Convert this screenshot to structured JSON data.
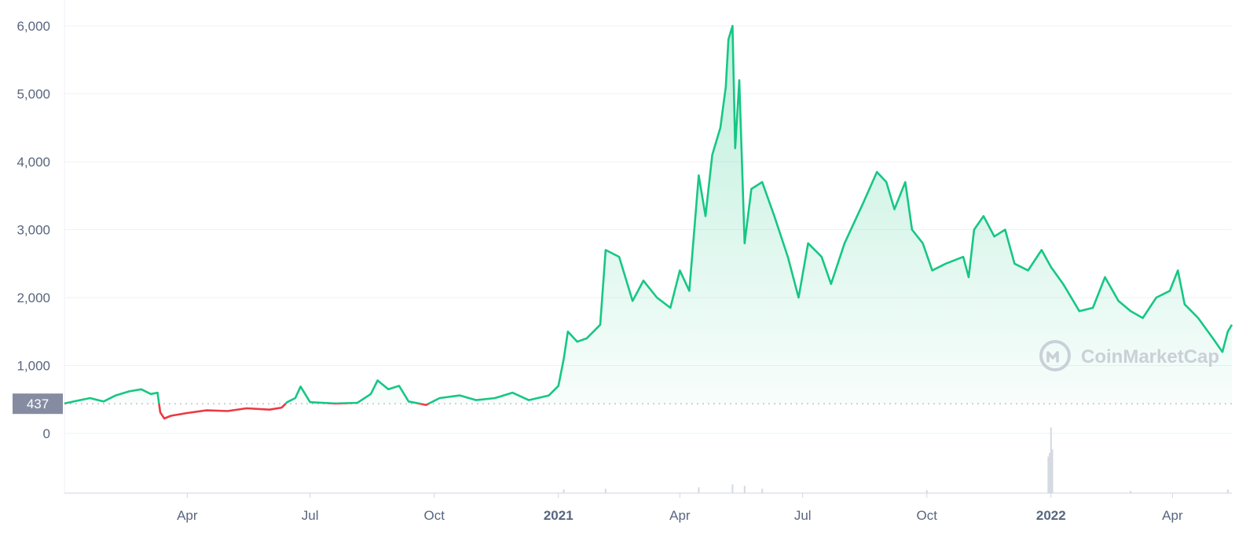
{
  "chart_data": {
    "type": "area",
    "y_ticks": [
      "0",
      "1,000",
      "2,000",
      "3,000",
      "4,000",
      "5,000",
      "6,000"
    ],
    "y_tick_values": [
      0,
      1000,
      2000,
      3000,
      4000,
      5000,
      6000
    ],
    "ylim": [
      0,
      6000
    ],
    "x_ticks": [
      {
        "label": "Apr",
        "date": "2020-04-01",
        "major": false
      },
      {
        "label": "Jul",
        "date": "2020-07-01",
        "major": false
      },
      {
        "label": "Oct",
        "date": "2020-10-01",
        "major": false
      },
      {
        "label": "2021",
        "date": "2021-01-01",
        "major": true
      },
      {
        "label": "Apr",
        "date": "2021-04-01",
        "major": false
      },
      {
        "label": "Jul",
        "date": "2021-07-01",
        "major": false
      },
      {
        "label": "Oct",
        "date": "2021-10-01",
        "major": false
      },
      {
        "label": "2022",
        "date": "2022-01-01",
        "major": true
      },
      {
        "label": "Apr",
        "date": "2022-04-01",
        "major": false
      }
    ],
    "xlim": [
      "2020-01-01",
      "2022-05-15"
    ],
    "reference_line": {
      "value": 437,
      "label": "437"
    },
    "colors": {
      "above": "#16c784",
      "below": "#ea3943",
      "grid": "#eff2f5",
      "axis_text": "#58667e",
      "ref_bg": "#858ca2"
    },
    "series": [
      {
        "points": [
          [
            "2020-01-01",
            440
          ],
          [
            "2020-01-10",
            480
          ],
          [
            "2020-01-20",
            520
          ],
          [
            "2020-01-30",
            470
          ],
          [
            "2020-02-08",
            560
          ],
          [
            "2020-02-18",
            620
          ],
          [
            "2020-02-27",
            650
          ],
          [
            "2020-03-05",
            580
          ],
          [
            "2020-03-10",
            600
          ],
          [
            "2020-03-12",
            310
          ],
          [
            "2020-03-15",
            220
          ],
          [
            "2020-03-20",
            260
          ],
          [
            "2020-04-01",
            300
          ],
          [
            "2020-04-15",
            340
          ],
          [
            "2020-05-01",
            330
          ],
          [
            "2020-05-15",
            370
          ],
          [
            "2020-06-01",
            350
          ],
          [
            "2020-06-10",
            380
          ],
          [
            "2020-06-14",
            460
          ],
          [
            "2020-06-20",
            520
          ],
          [
            "2020-06-24",
            690
          ],
          [
            "2020-07-01",
            460
          ],
          [
            "2020-07-20",
            440
          ],
          [
            "2020-08-05",
            450
          ],
          [
            "2020-08-15",
            580
          ],
          [
            "2020-08-20",
            780
          ],
          [
            "2020-08-28",
            650
          ],
          [
            "2020-09-05",
            700
          ],
          [
            "2020-09-12",
            470
          ],
          [
            "2020-09-25",
            420
          ],
          [
            "2020-10-05",
            520
          ],
          [
            "2020-10-20",
            560
          ],
          [
            "2020-11-01",
            490
          ],
          [
            "2020-11-15",
            520
          ],
          [
            "2020-11-28",
            600
          ],
          [
            "2020-12-10",
            490
          ],
          [
            "2020-12-25",
            560
          ],
          [
            "2021-01-01",
            700
          ],
          [
            "2021-01-05",
            1100
          ],
          [
            "2021-01-08",
            1500
          ],
          [
            "2021-01-15",
            1350
          ],
          [
            "2021-01-22",
            1400
          ],
          [
            "2021-02-01",
            1600
          ],
          [
            "2021-02-05",
            2700
          ],
          [
            "2021-02-15",
            2600
          ],
          [
            "2021-02-25",
            1950
          ],
          [
            "2021-03-05",
            2250
          ],
          [
            "2021-03-15",
            2000
          ],
          [
            "2021-03-25",
            1850
          ],
          [
            "2021-04-01",
            2400
          ],
          [
            "2021-04-08",
            2100
          ],
          [
            "2021-04-15",
            3800
          ],
          [
            "2021-04-20",
            3200
          ],
          [
            "2021-04-25",
            4100
          ],
          [
            "2021-05-01",
            4500
          ],
          [
            "2021-05-05",
            5100
          ],
          [
            "2021-05-07",
            5800
          ],
          [
            "2021-05-10",
            6000
          ],
          [
            "2021-05-12",
            4200
          ],
          [
            "2021-05-15",
            5200
          ],
          [
            "2021-05-19",
            2800
          ],
          [
            "2021-05-24",
            3600
          ],
          [
            "2021-06-01",
            3700
          ],
          [
            "2021-06-10",
            3200
          ],
          [
            "2021-06-20",
            2600
          ],
          [
            "2021-06-28",
            2000
          ],
          [
            "2021-07-05",
            2800
          ],
          [
            "2021-07-15",
            2600
          ],
          [
            "2021-07-22",
            2200
          ],
          [
            "2021-08-01",
            2800
          ],
          [
            "2021-08-15",
            3400
          ],
          [
            "2021-08-25",
            3850
          ],
          [
            "2021-09-01",
            3700
          ],
          [
            "2021-09-07",
            3300
          ],
          [
            "2021-09-15",
            3700
          ],
          [
            "2021-09-20",
            3000
          ],
          [
            "2021-09-28",
            2800
          ],
          [
            "2021-10-05",
            2400
          ],
          [
            "2021-10-15",
            2500
          ],
          [
            "2021-10-28",
            2600
          ],
          [
            "2021-11-01",
            2300
          ],
          [
            "2021-11-05",
            3000
          ],
          [
            "2021-11-12",
            3200
          ],
          [
            "2021-11-20",
            2900
          ],
          [
            "2021-11-28",
            3000
          ],
          [
            "2021-12-05",
            2500
          ],
          [
            "2021-12-15",
            2400
          ],
          [
            "2021-12-25",
            2700
          ],
          [
            "2022-01-01",
            2450
          ],
          [
            "2022-01-10",
            2200
          ],
          [
            "2022-01-22",
            1800
          ],
          [
            "2022-02-01",
            1850
          ],
          [
            "2022-02-10",
            2300
          ],
          [
            "2022-02-20",
            1950
          ],
          [
            "2022-03-01",
            1800
          ],
          [
            "2022-03-10",
            1700
          ],
          [
            "2022-03-20",
            2000
          ],
          [
            "2022-03-30",
            2100
          ],
          [
            "2022-04-05",
            2400
          ],
          [
            "2022-04-10",
            1900
          ],
          [
            "2022-04-20",
            1700
          ],
          [
            "2022-05-01",
            1400
          ],
          [
            "2022-05-08",
            1200
          ],
          [
            "2022-05-12",
            1500
          ],
          [
            "2022-05-15",
            1600
          ]
        ]
      }
    ],
    "volume": [
      [
        "2021-01-05",
        0.05
      ],
      [
        "2021-02-05",
        0.06
      ],
      [
        "2021-04-15",
        0.08
      ],
      [
        "2021-05-10",
        0.12
      ],
      [
        "2021-05-19",
        0.1
      ],
      [
        "2021-06-01",
        0.06
      ],
      [
        "2021-10-01",
        0.04
      ],
      [
        "2021-12-30",
        0.5
      ],
      [
        "2021-12-31",
        0.55
      ],
      [
        "2022-01-01",
        0.9
      ],
      [
        "2022-01-02",
        0.6
      ],
      [
        "2022-03-01",
        0.03
      ],
      [
        "2022-05-12",
        0.05
      ]
    ],
    "watermark": "CoinMarketCap"
  }
}
